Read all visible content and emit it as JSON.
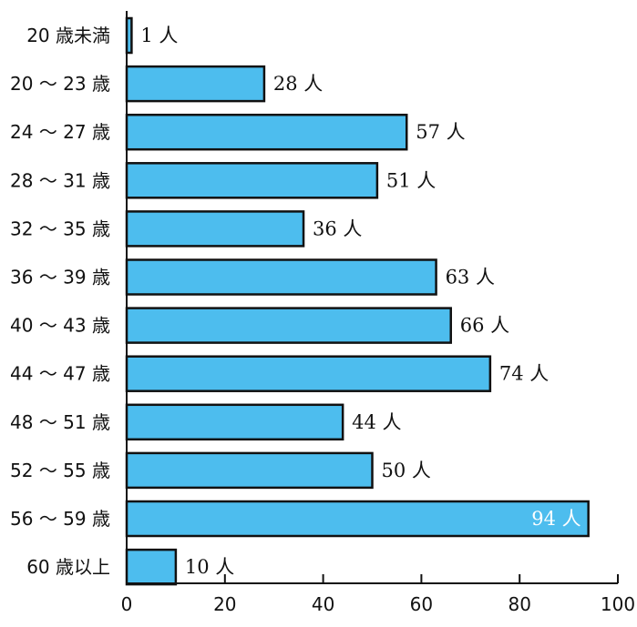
{
  "chart_data": {
    "type": "bar",
    "orientation": "horizontal",
    "categories": [
      "20 歳未満",
      "20 〜 23 歳",
      "24 〜 27 歳",
      "28 〜 31 歳",
      "32 〜 35 歳",
      "36 〜 39 歳",
      "40 〜 43 歳",
      "44 〜 47 歳",
      "48 〜 51 歳",
      "52 〜 55 歳",
      "56 〜 59 歳",
      "60 歳以上"
    ],
    "values": [
      1,
      28,
      57,
      51,
      36,
      63,
      66,
      74,
      44,
      50,
      94,
      10
    ],
    "data_labels": [
      "1 人",
      "28 人",
      "57 人",
      "51 人",
      "36 人",
      "63 人",
      "66 人",
      "74 人",
      "44 人",
      "50 人",
      "94 人",
      "10 人"
    ],
    "xlim": [
      0,
      100
    ],
    "xticks": [
      0,
      20,
      40,
      60,
      80,
      100
    ],
    "xtick_labels": [
      "0",
      "20",
      "40",
      "60",
      "80",
      "100"
    ],
    "title": "",
    "xlabel": "",
    "ylabel": "",
    "grid": false,
    "bar_color": "#4dbdee",
    "edge_color": "#111111",
    "label_color": "#111111",
    "inside_label_color": "#ffffff"
  }
}
